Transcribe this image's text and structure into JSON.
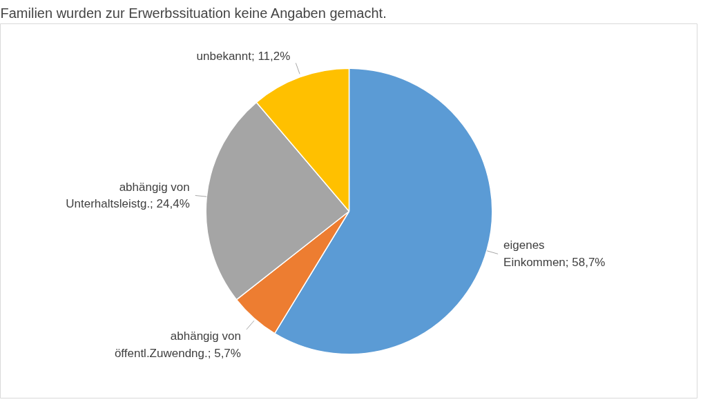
{
  "chart_data": {
    "type": "pie",
    "title": "Familien wurden zur Erwerbssituation keine Angaben gemacht.",
    "categories": [
      "eigenes Einkommen",
      "abhängig von öffentl.Zuwendng.",
      "abhängig von Unterhaltsleistg.",
      "unbekannt"
    ],
    "values": [
      58.7,
      5.7,
      24.4,
      11.2
    ],
    "value_labels": [
      "58,7%",
      "5,7%",
      "24,4%",
      "11,2%"
    ],
    "colors": [
      "#5b9bd5",
      "#ed7d31",
      "#a5a5a5",
      "#ffc000"
    ]
  }
}
